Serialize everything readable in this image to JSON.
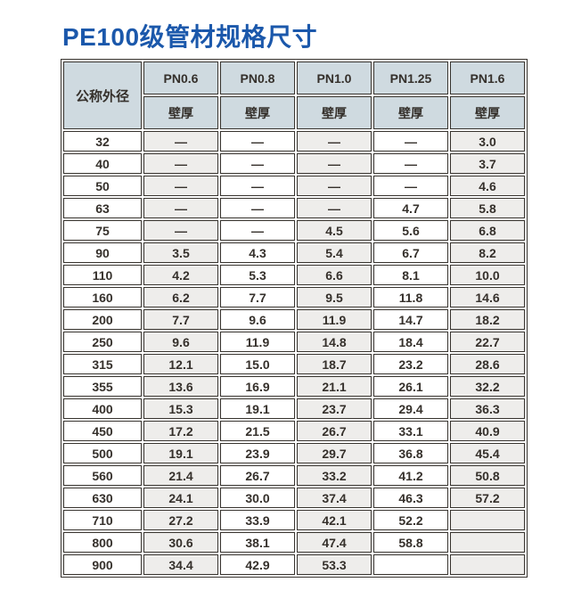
{
  "page": {
    "title": "PE100级管材规格尺寸"
  },
  "colors": {
    "title_blue": "#1b58ab",
    "header_bg": "#cfdae0",
    "stripe_bg": "#eeedeb",
    "border": "#38342f"
  },
  "table": {
    "corner_header": "公称外径",
    "pn_headers": [
      "PN0.6",
      "PN0.8",
      "PN1.0",
      "PN1.25",
      "PN1.6"
    ],
    "sub_header": "壁厚",
    "empty_marker": "—",
    "rows": [
      {
        "od": "32",
        "values": [
          "—",
          "—",
          "—",
          "—",
          "3.0"
        ]
      },
      {
        "od": "40",
        "values": [
          "—",
          "—",
          "—",
          "—",
          "3.7"
        ]
      },
      {
        "od": "50",
        "values": [
          "—",
          "—",
          "—",
          "—",
          "4.6"
        ]
      },
      {
        "od": "63",
        "values": [
          "—",
          "—",
          "—",
          "4.7",
          "5.8"
        ]
      },
      {
        "od": "75",
        "values": [
          "—",
          "—",
          "4.5",
          "5.6",
          "6.8"
        ]
      },
      {
        "od": "90",
        "values": [
          "3.5",
          "4.3",
          "5.4",
          "6.7",
          "8.2"
        ]
      },
      {
        "od": "110",
        "values": [
          "4.2",
          "5.3",
          "6.6",
          "8.1",
          "10.0"
        ]
      },
      {
        "od": "160",
        "values": [
          "6.2",
          "7.7",
          "9.5",
          "11.8",
          "14.6"
        ]
      },
      {
        "od": "200",
        "values": [
          "7.7",
          "9.6",
          "11.9",
          "14.7",
          "18.2"
        ]
      },
      {
        "od": "250",
        "values": [
          "9.6",
          "11.9",
          "14.8",
          "18.4",
          "22.7"
        ]
      },
      {
        "od": "315",
        "values": [
          "12.1",
          "15.0",
          "18.7",
          "23.2",
          "28.6"
        ]
      },
      {
        "od": "355",
        "values": [
          "13.6",
          "16.9",
          "21.1",
          "26.1",
          "32.2"
        ]
      },
      {
        "od": "400",
        "values": [
          "15.3",
          "19.1",
          "23.7",
          "29.4",
          "36.3"
        ]
      },
      {
        "od": "450",
        "values": [
          "17.2",
          "21.5",
          "26.7",
          "33.1",
          "40.9"
        ]
      },
      {
        "od": "500",
        "values": [
          "19.1",
          "23.9",
          "29.7",
          "36.8",
          "45.4"
        ]
      },
      {
        "od": "560",
        "values": [
          "21.4",
          "26.7",
          "33.2",
          "41.2",
          "50.8"
        ]
      },
      {
        "od": "630",
        "values": [
          "24.1",
          "30.0",
          "37.4",
          "46.3",
          "57.2"
        ]
      },
      {
        "od": "710",
        "values": [
          "27.2",
          "33.9",
          "42.1",
          "52.2",
          ""
        ]
      },
      {
        "od": "800",
        "values": [
          "30.6",
          "38.1",
          "47.4",
          "58.8",
          ""
        ]
      },
      {
        "od": "900",
        "values": [
          "34.4",
          "42.9",
          "53.3",
          "",
          ""
        ]
      }
    ]
  }
}
